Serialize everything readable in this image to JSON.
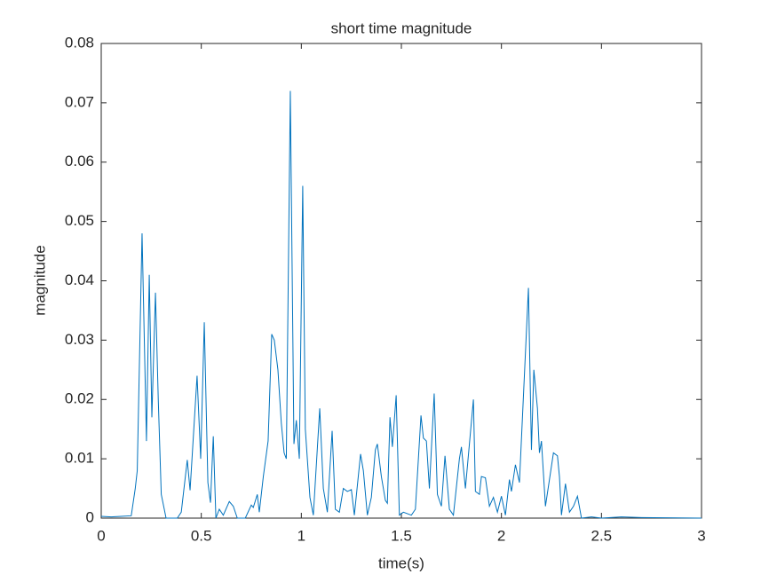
{
  "chart_data": {
    "type": "line",
    "title": "short time magnitude",
    "x_label": "time(s)",
    "y_label": "magnitude",
    "x": [
      0,
      0.05,
      0.1,
      0.15,
      0.17,
      0.18,
      0.204,
      0.226,
      0.24,
      0.253,
      0.271,
      0.285,
      0.3,
      0.324,
      0.38,
      0.4,
      0.43,
      0.444,
      0.479,
      0.497,
      0.515,
      0.533,
      0.546,
      0.56,
      0.573,
      0.59,
      0.61,
      0.64,
      0.66,
      0.68,
      0.72,
      0.75,
      0.76,
      0.78,
      0.79,
      0.81,
      0.834,
      0.852,
      0.865,
      0.883,
      0.9,
      0.914,
      0.925,
      0.945,
      0.963,
      0.975,
      0.99,
      1.007,
      1.02,
      1.043,
      1.06,
      1.092,
      1.11,
      1.13,
      1.154,
      1.17,
      1.19,
      1.21,
      1.23,
      1.25,
      1.265,
      1.296,
      1.31,
      1.33,
      1.35,
      1.37,
      1.38,
      1.4,
      1.42,
      1.43,
      1.443,
      1.455,
      1.474,
      1.49,
      1.51,
      1.55,
      1.57,
      1.598,
      1.61,
      1.625,
      1.64,
      1.664,
      1.68,
      1.7,
      1.718,
      1.74,
      1.76,
      1.79,
      1.8,
      1.82,
      1.86,
      1.87,
      1.89,
      1.9,
      1.92,
      1.94,
      1.96,
      1.98,
      2.0,
      2.02,
      2.04,
      2.05,
      2.07,
      2.09,
      2.135,
      2.15,
      2.162,
      2.18,
      2.19,
      2.2,
      2.22,
      2.24,
      2.26,
      2.28,
      2.29,
      2.3,
      2.32,
      2.34,
      2.36,
      2.38,
      2.4,
      2.45,
      2.5,
      2.6,
      2.7,
      3
    ],
    "series": [
      {
        "name": "magnitude",
        "color": "#0072BD",
        "values": [
          0.0003,
          0.0002,
          0.0003,
          0.0004,
          0.005,
          0.008,
          0.048,
          0.013,
          0.041,
          0.017,
          0.038,
          0.02,
          0.004,
          0,
          0,
          0.001,
          0.0098,
          0.0047,
          0.024,
          0.01,
          0.033,
          0.006,
          0.0026,
          0.0138,
          0,
          0.0015,
          0.0005,
          0.0028,
          0.002,
          0,
          0,
          0.0022,
          0.0018,
          0.004,
          0.001,
          0.007,
          0.013,
          0.031,
          0.03,
          0.025,
          0.016,
          0.011,
          0.01,
          0.072,
          0.0125,
          0.0165,
          0.01,
          0.056,
          0.015,
          0.0035,
          0.0005,
          0.0185,
          0.005,
          0.001,
          0.0147,
          0.0015,
          0.001,
          0.005,
          0.0045,
          0.0048,
          0.0005,
          0.0108,
          0.008,
          0.0005,
          0.0035,
          0.0115,
          0.0125,
          0.007,
          0.003,
          0.0025,
          0.017,
          0.012,
          0.0207,
          0.0005,
          0.001,
          0.0005,
          0.0015,
          0.0173,
          0.0135,
          0.013,
          0.005,
          0.021,
          0.004,
          0.002,
          0.0105,
          0.0015,
          0.0005,
          0.01,
          0.012,
          0.005,
          0.02,
          0.0045,
          0.004,
          0.007,
          0.0068,
          0.002,
          0.0035,
          0.001,
          0.0037,
          0.0005,
          0.0065,
          0.0045,
          0.009,
          0.006,
          0.0388,
          0.0115,
          0.025,
          0.0185,
          0.011,
          0.013,
          0.002,
          0.0065,
          0.011,
          0.0105,
          0.007,
          0.0005,
          0.0058,
          0.001,
          0.002,
          0.0037,
          0,
          0.0002,
          0,
          0.0002,
          0.0001,
          0
        ]
      }
    ],
    "xlim": [
      0,
      3
    ],
    "xticks": [
      0,
      0.5,
      1,
      1.5,
      2,
      2.5,
      3
    ],
    "ylim": [
      0,
      0.08
    ],
    "yticks": [
      0,
      0.01,
      0.02,
      0.03,
      0.04,
      0.05,
      0.06,
      0.07,
      0.08
    ]
  }
}
